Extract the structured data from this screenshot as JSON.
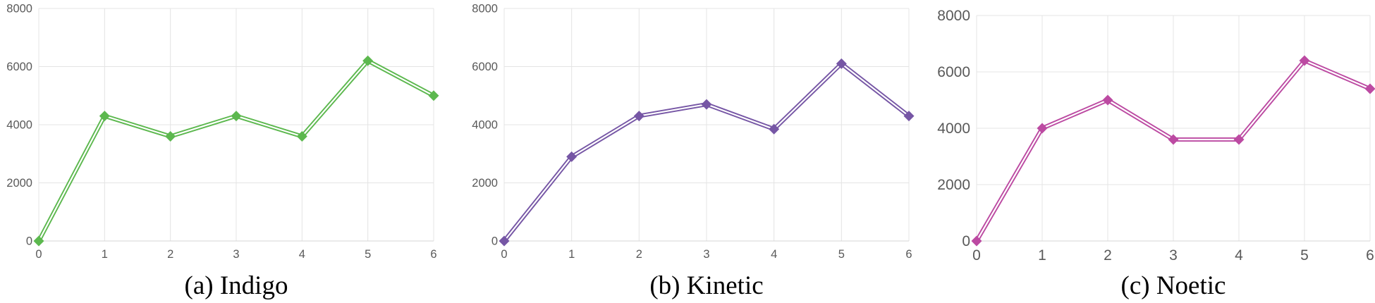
{
  "figure": {
    "background": "#ffffff",
    "grid_color": "#e4e4e4",
    "axis_line_color": "#d6d6d6",
    "tick_label_color": "#595959",
    "caption_color": "#000000"
  },
  "chart_data": [
    {
      "type": "line",
      "title": "(a) Indigo",
      "series": [
        {
          "name": "Indigo",
          "color": "#5cb84e",
          "x": [
            0,
            1,
            2,
            3,
            4,
            5,
            6
          ],
          "y": [
            0,
            4300,
            3600,
            4300,
            3600,
            6200,
            5000
          ]
        }
      ],
      "xlabel": "",
      "ylabel": "",
      "xlim": [
        0,
        6
      ],
      "ylim": [
        0,
        8000
      ],
      "xticks": [
        0,
        1,
        2,
        3,
        4,
        5,
        6
      ],
      "yticks": [
        0,
        2000,
        4000,
        6000,
        8000
      ],
      "grid": true,
      "legend": false,
      "marker": "diamond",
      "line_style": "double-stroke"
    },
    {
      "type": "line",
      "title": "(b) Kinetic",
      "series": [
        {
          "name": "Kinetic",
          "color": "#7656a5",
          "x": [
            0,
            1,
            2,
            3,
            4,
            5,
            6
          ],
          "y": [
            0,
            2900,
            4300,
            4700,
            3850,
            6100,
            4300
          ]
        }
      ],
      "xlabel": "",
      "ylabel": "",
      "xlim": [
        0,
        6
      ],
      "ylim": [
        0,
        8000
      ],
      "xticks": [
        0,
        1,
        2,
        3,
        4,
        5,
        6
      ],
      "yticks": [
        0,
        2000,
        4000,
        6000,
        8000
      ],
      "grid": true,
      "legend": false,
      "marker": "diamond",
      "line_style": "double-stroke"
    },
    {
      "type": "line",
      "title": "(c) Noetic",
      "series": [
        {
          "name": "Noetic",
          "color": "#bc4aa2",
          "x": [
            0,
            1,
            2,
            3,
            4,
            5,
            6
          ],
          "y": [
            0,
            4000,
            5000,
            3600,
            3600,
            6400,
            5400
          ]
        }
      ],
      "xlabel": "",
      "ylabel": "",
      "xlim": [
        0,
        6
      ],
      "ylim": [
        0,
        8000
      ],
      "xticks": [
        0,
        1,
        2,
        3,
        4,
        5,
        6
      ],
      "yticks": [
        0,
        2000,
        4000,
        6000,
        8000
      ],
      "grid": true,
      "legend": false,
      "marker": "diamond",
      "line_style": "double-stroke"
    }
  ]
}
